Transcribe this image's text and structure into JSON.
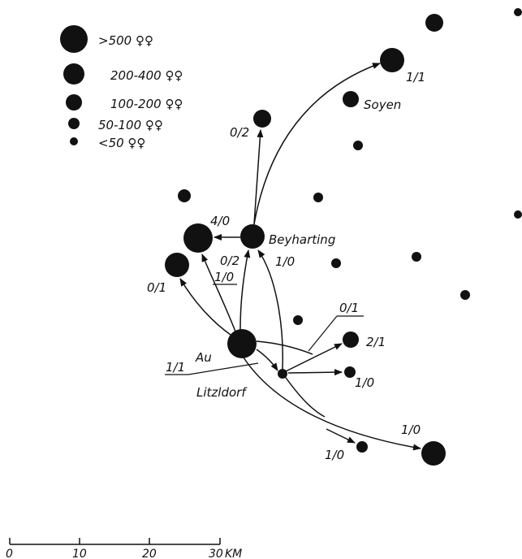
{
  "legend": {
    "items": [
      {
        "label": ">500 ♀♀",
        "icon": "large-colony-dot-icon"
      },
      {
        "label": "200-400 ♀♀",
        "icon": "medium-large-colony-dot-icon"
      },
      {
        "label": "100-200 ♀♀",
        "icon": "medium-colony-dot-icon"
      },
      {
        "label": "50-100 ♀♀",
        "icon": "small-colony-dot-icon"
      },
      {
        "label": "<50 ♀♀",
        "icon": "tiny-colony-dot-icon"
      }
    ]
  },
  "places": {
    "soyen": "Soyen",
    "beyharting": "Beyharting",
    "au": "Au",
    "litzldorf": "Litzldorf"
  },
  "ratios": {
    "r_1_1_top": "1/1",
    "r_0_2_top": "0/2",
    "r_4_0": "4/0",
    "r_0_2_mid": "0/2",
    "r_1_0_mid": "1/0",
    "r_0_1_left": "0/1",
    "r_1_0_under": "1/0",
    "r_0_1_right": "0/1",
    "r_2_1": "2/1",
    "r_1_1_left": "1/1",
    "r_1_0_litz": "1/0",
    "r_1_0_far": "1/0",
    "r_1_0_bottom": "1/0"
  },
  "scale": {
    "ticks": [
      "0",
      "10",
      "20",
      "30"
    ],
    "unit": "KM"
  },
  "colors": {
    "ink": "#111111",
    "background": "#ffffff"
  }
}
